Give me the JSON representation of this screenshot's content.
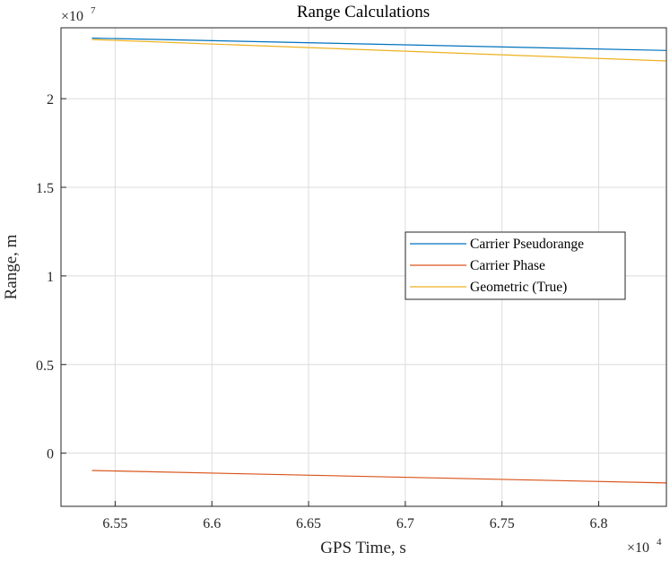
{
  "chart_data": {
    "type": "line",
    "title": "Range Calculations",
    "xlabel": "GPS Time, s",
    "ylabel": "Range, m",
    "x_exponent_label": "×10",
    "x_exponent": "4",
    "y_exponent_label": "×10",
    "y_exponent": "7",
    "xlim": [
      65220,
      68350
    ],
    "ylim": [
      -0.3,
      2.4
    ],
    "x_ticks": [
      65500,
      66000,
      66500,
      67000,
      67500,
      68000
    ],
    "x_tick_labels": [
      "6.55",
      "6.6",
      "6.65",
      "6.7",
      "6.75",
      "6.8"
    ],
    "y_ticks": [
      0,
      0.5,
      1,
      1.5,
      2
    ],
    "y_tick_labels": [
      "0",
      "0.5",
      "1",
      "1.5",
      "2"
    ],
    "grid": true,
    "legend_position": "right",
    "series": [
      {
        "name": "Carrier Pseudorange",
        "color": "#0072BD",
        "x": [
          65380,
          68350
        ],
        "y": [
          2.342,
          2.272
        ]
      },
      {
        "name": "Carrier Phase",
        "color": "#D95319",
        "x": [
          65380,
          68350
        ],
        "y": [
          -0.098,
          -0.168
        ]
      },
      {
        "name": "Geometric (True)",
        "color": "#EDB120",
        "x": [
          65380,
          68350
        ],
        "y": [
          2.334,
          2.213
        ]
      }
    ]
  }
}
